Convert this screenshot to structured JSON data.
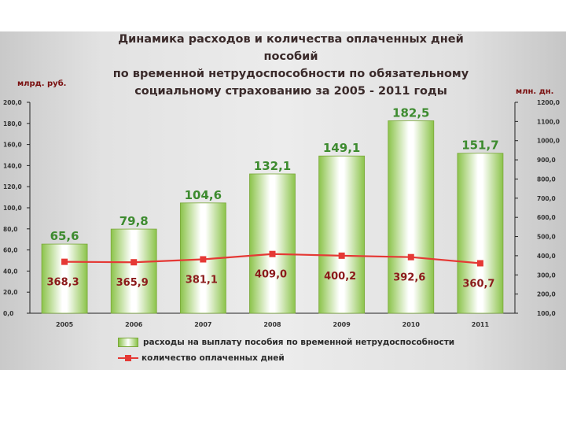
{
  "title_lines": [
    "Динамика расходов и количества оплаченных дней",
    "пособий",
    "по временной нетрудоспособности  по обязательному",
    "социальному страхованию за 2005 - 2011 годы"
  ],
  "colors": {
    "bar": "#8bc34a",
    "bar_label": "#3d8b2f",
    "line": "#e53935",
    "line_label": "#8b1a1a"
  },
  "chart_data": {
    "type": "bar",
    "title": "Динамика расходов и количества оплаченных дней пособий по временной нетрудоспособности  по обязательному социальному страхованию за 2005 - 2011 годы",
    "categories": [
      "2005",
      "2006",
      "2007",
      "2008",
      "2009",
      "2010",
      "2011"
    ],
    "series": [
      {
        "name": "расходы на выплату пособия по временной нетрудоспособности",
        "type": "bar",
        "axis": "left",
        "values": [
          65.6,
          79.8,
          104.6,
          132.1,
          149.1,
          182.5,
          151.7
        ],
        "labels": [
          "65,6",
          "79,8",
          "104,6",
          "132,1",
          "149,1",
          "182,5",
          "151,7"
        ]
      },
      {
        "name": "количество оплаченных дней",
        "type": "line",
        "axis": "right",
        "values": [
          368.3,
          365.9,
          381.1,
          409.0,
          400.2,
          392.6,
          360.7
        ],
        "labels": [
          "368,3",
          "365,9",
          "381,1",
          "409,0",
          "400,2",
          "392,6",
          "360,7"
        ]
      }
    ],
    "y_left": {
      "label": "млрд. руб.",
      "range": [
        0,
        200
      ],
      "ticks": [
        0,
        20,
        40,
        60,
        80,
        100,
        120,
        140,
        160,
        180,
        200
      ],
      "tick_labels": [
        "0,0",
        "20,0",
        "40,0",
        "60,0",
        "80,0",
        "100,0",
        "120,0",
        "140,0",
        "160,0",
        "180,0",
        "200,0"
      ]
    },
    "y_right": {
      "label": "млн. дн.",
      "range": [
        100,
        1200
      ],
      "ticks": [
        100,
        200,
        300,
        400,
        500,
        600,
        700,
        800,
        900,
        1000,
        1100,
        1200
      ],
      "tick_labels": [
        "100,0",
        "200,0",
        "300,0",
        "400,0",
        "500,0",
        "600,0",
        "700,0",
        "800,0",
        "900,0",
        "1000,0",
        "1100,0",
        "1200,0"
      ]
    },
    "grid": false,
    "legend_position": "bottom"
  }
}
